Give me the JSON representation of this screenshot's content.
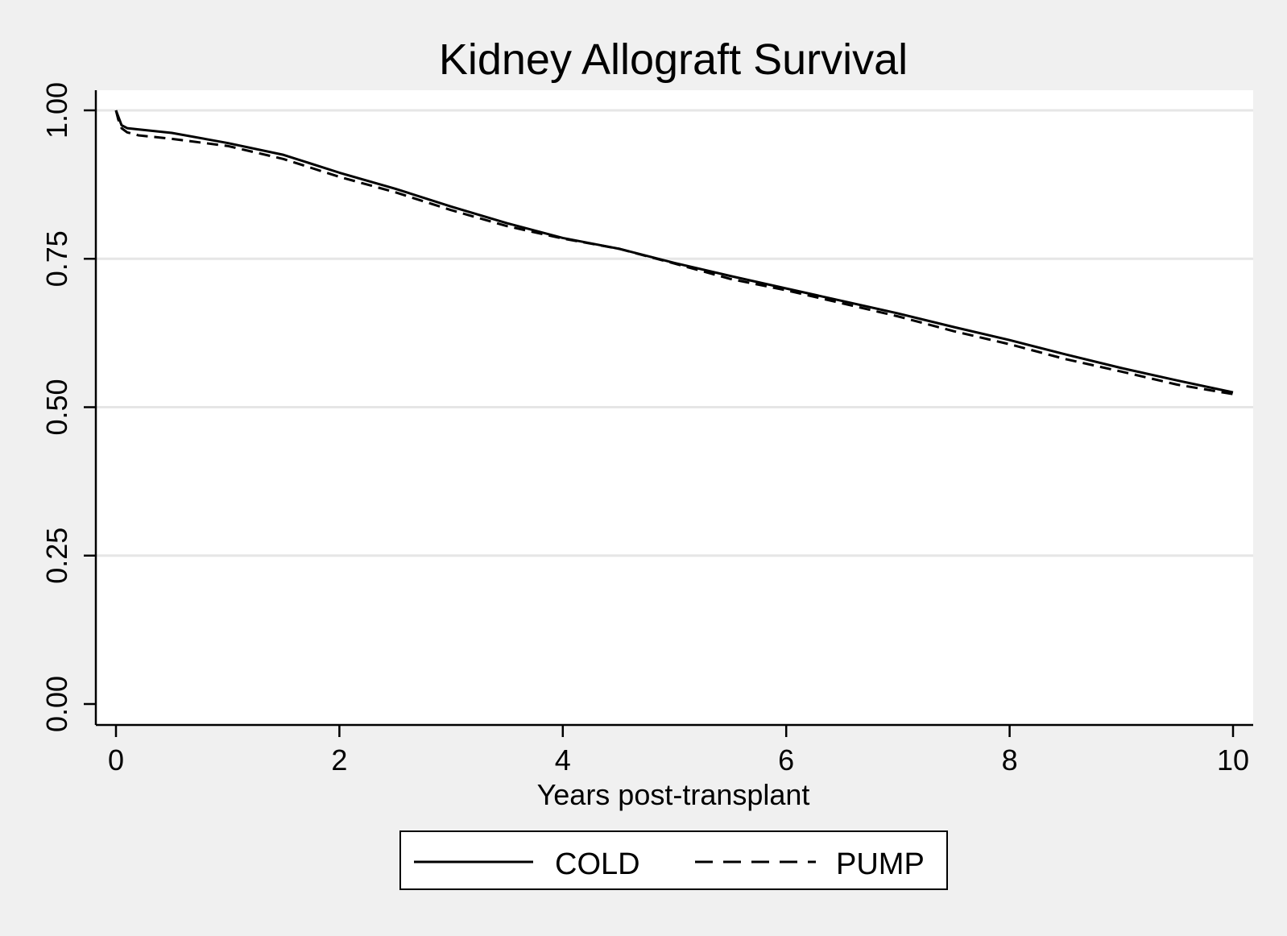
{
  "chart_data": {
    "type": "line",
    "title": "Kidney Allograft Survival",
    "xlabel": "Years post-transplant",
    "ylabel": "",
    "xlim": [
      0,
      10
    ],
    "ylim": [
      0,
      1
    ],
    "x_ticks": [
      0,
      2,
      4,
      6,
      8,
      10
    ],
    "x_tick_labels": [
      "0",
      "2",
      "4",
      "6",
      "8",
      "10"
    ],
    "y_ticks": [
      0,
      0.25,
      0.5,
      0.75,
      1.0
    ],
    "y_tick_labels": [
      "0.00",
      "0.25",
      "0.50",
      "0.75",
      "1.00"
    ],
    "grid": "horizontal",
    "legend_position": "bottom",
    "colors": {
      "background": "#f0f0f0",
      "plot_area": "#ffffff",
      "grid": "#e6e6e6",
      "line": "#000000"
    },
    "series": [
      {
        "name": "COLD",
        "style": "solid",
        "x": [
          0,
          0.02,
          0.05,
          0.1,
          0.2,
          0.5,
          1,
          1.5,
          2,
          2.5,
          3,
          3.5,
          4,
          4.5,
          5,
          5.5,
          6,
          6.5,
          7,
          7.5,
          8,
          8.5,
          9,
          9.5,
          10
        ],
        "y": [
          1.0,
          0.99,
          0.975,
          0.97,
          0.968,
          0.962,
          0.945,
          0.925,
          0.895,
          0.868,
          0.838,
          0.81,
          0.785,
          0.767,
          0.743,
          0.721,
          0.7,
          0.679,
          0.658,
          0.635,
          0.613,
          0.589,
          0.566,
          0.545,
          0.525
        ]
      },
      {
        "name": "PUMP",
        "style": "dashed",
        "x": [
          0,
          0.02,
          0.05,
          0.1,
          0.2,
          0.5,
          1,
          1.5,
          2,
          2.5,
          3,
          3.5,
          4,
          4.5,
          5,
          5.5,
          6,
          6.5,
          7,
          7.5,
          8,
          8.5,
          9,
          9.5,
          10
        ],
        "y": [
          1.0,
          0.985,
          0.97,
          0.963,
          0.958,
          0.952,
          0.94,
          0.918,
          0.888,
          0.862,
          0.832,
          0.805,
          0.784,
          0.767,
          0.742,
          0.716,
          0.697,
          0.675,
          0.653,
          0.628,
          0.606,
          0.581,
          0.56,
          0.538,
          0.522
        ]
      }
    ]
  }
}
